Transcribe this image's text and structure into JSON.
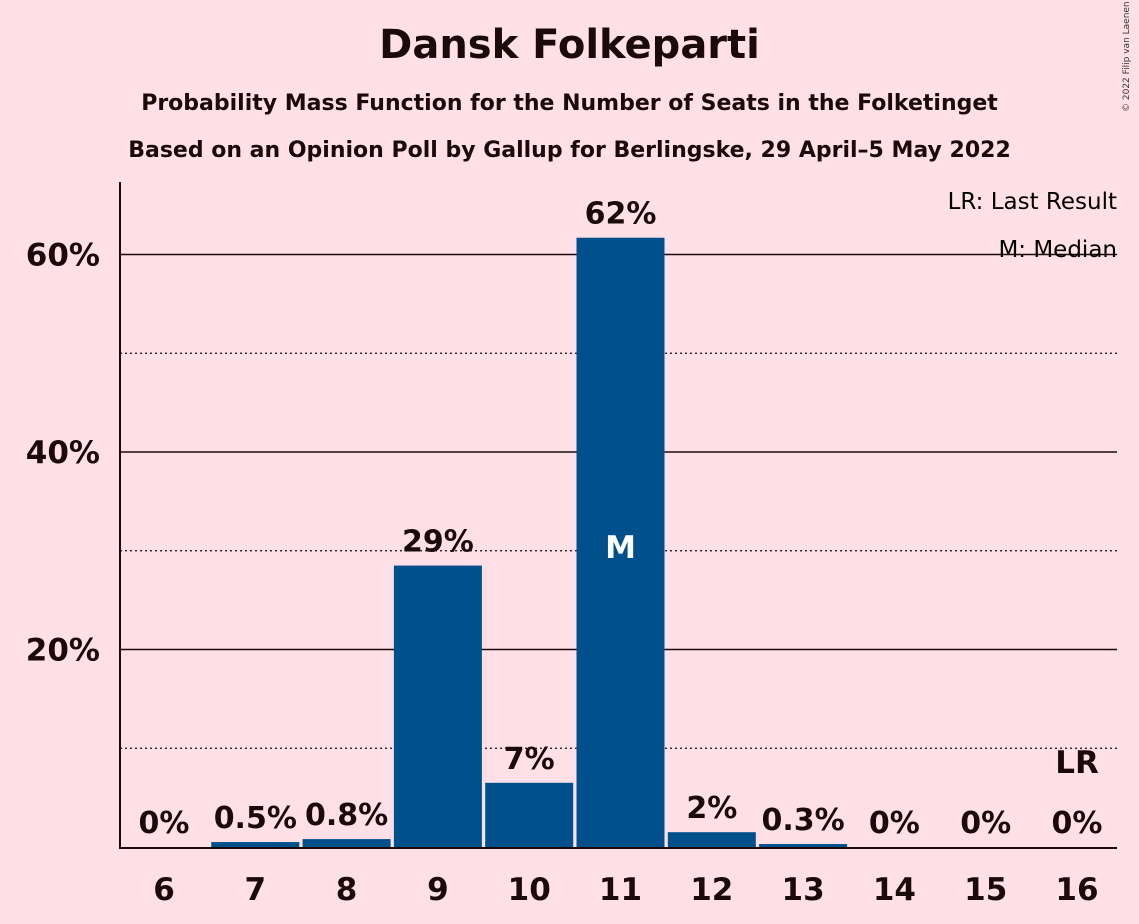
{
  "title": "Dansk Folkeparti",
  "subtitle": "Probability Mass Function for the Number of Seats in the Folketinget",
  "subtitle2": "Based on an Opinion Poll by Gallup for Berlingske, 29 April–5 May 2022",
  "copyright": "© 2022 Filip van Laenen",
  "legend": {
    "last_result": "LR: Last Result",
    "median": "M: Median"
  },
  "colors": {
    "background": "#FFE0E6",
    "bar": "#00508C",
    "text": "#1a0a0a"
  },
  "chart_data": {
    "type": "bar",
    "categories": [
      "6",
      "7",
      "8",
      "9",
      "10",
      "11",
      "12",
      "13",
      "14",
      "15",
      "16"
    ],
    "values": [
      0,
      0.5,
      0.8,
      28.5,
      6.5,
      61.7,
      1.5,
      0.3,
      0,
      0,
      0
    ],
    "data_labels": [
      "0%",
      "0.5%",
      "0.8%",
      "29%",
      "7%",
      "62%",
      "2%",
      "0.3%",
      "0%",
      "0%",
      "0%"
    ],
    "ylim": [
      0,
      67
    ],
    "yticks": [
      20,
      40,
      60
    ],
    "ytick_labels": [
      "20%",
      "40%",
      "60%"
    ],
    "minor_gridlines": [
      10,
      30,
      50
    ],
    "grid": true,
    "median_seat": "11",
    "median_label": "M",
    "last_result_seat": "16",
    "last_result_label": "LR",
    "legend_position": "top-right"
  }
}
